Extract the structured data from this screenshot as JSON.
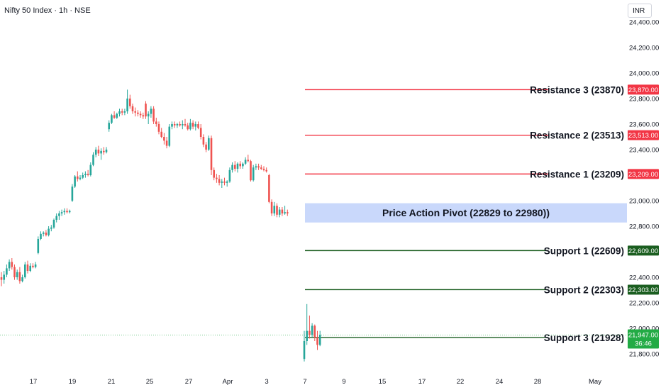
{
  "header": {
    "symbol_line": "Nifty 50 Index · 1h · NSE",
    "currency": "INR"
  },
  "colors": {
    "up": "#26a69a",
    "down": "#ef5350",
    "resistance": "#f23645",
    "support": "#1b5e20",
    "pivot_zone": "#c9d8fb",
    "current_price": "#22ab45"
  },
  "chart_data": {
    "type": "candlestick",
    "title": "Nifty 50 Index · 1h · NSE",
    "y_axis": {
      "ylim": [
        21700,
        24450
      ],
      "ticks": [
        {
          "value": 24400,
          "label": "24,400.00"
        },
        {
          "value": 24200,
          "label": "24,200.00"
        },
        {
          "value": 24000,
          "label": "24,000.00"
        },
        {
          "value": 23800,
          "label": "23,800.00"
        },
        {
          "value": 23600,
          "label": "23,600.00"
        },
        {
          "value": 23400,
          "label": "23,400.00"
        },
        {
          "value": 23000,
          "label": "23,000.00"
        },
        {
          "value": 22800,
          "label": "22,800.00"
        },
        {
          "value": 22400,
          "label": "22,400.00"
        },
        {
          "value": 22200,
          "label": "22,200.00"
        },
        {
          "value": 22000,
          "label": "22,000.00"
        },
        {
          "value": 21800,
          "label": "21,800.00"
        }
      ]
    },
    "x_axis": {
      "tick_labels": [
        "17",
        "19",
        "21",
        "25",
        "27",
        "Apr",
        "3",
        "7",
        "9",
        "15",
        "17",
        "22",
        "24",
        "28",
        "May"
      ]
    },
    "levels": [
      {
        "kind": "resistance",
        "label": "Resistance 3 (23870)",
        "value": 23870,
        "badge": "23,870.00"
      },
      {
        "kind": "resistance",
        "label": "Resistance 2 (23513)",
        "value": 23513,
        "badge": "23,513.00"
      },
      {
        "kind": "resistance",
        "label": "Resistance 1 (23209)",
        "value": 23209,
        "badge": "23,209.00"
      },
      {
        "kind": "support",
        "label": "Support 1 (22609)",
        "value": 22609,
        "badge": "22,609.00"
      },
      {
        "kind": "support",
        "label": "Support 2 (22303)",
        "value": 22303,
        "badge": "22,303.00"
      },
      {
        "kind": "support",
        "label": "Support 3 (21928)",
        "value": 21928,
        "badge": ""
      }
    ],
    "pivot_zone": {
      "label": "Price Action Pivot (22829 to 22980))",
      "low": 22829,
      "high": 22980
    },
    "current_price": {
      "value": 21947,
      "label": "21,947.00",
      "countdown": "36:46"
    },
    "candles": [
      {
        "date": "Mar 13",
        "o": 22400,
        "h": 22440,
        "l": 22330,
        "c": 22380
      },
      {
        "date": "Mar 13",
        "o": 22380,
        "h": 22450,
        "l": 22350,
        "c": 22420
      },
      {
        "date": "Mar 13",
        "o": 22420,
        "h": 22500,
        "l": 22400,
        "c": 22470
      },
      {
        "date": "Mar 13",
        "o": 22470,
        "h": 22540,
        "l": 22450,
        "c": 22520
      },
      {
        "date": "Mar 13",
        "o": 22520,
        "h": 22550,
        "l": 22460,
        "c": 22480
      },
      {
        "date": "Mar 13",
        "o": 22480,
        "h": 22500,
        "l": 22380,
        "c": 22400
      },
      {
        "date": "Mar 17",
        "o": 22400,
        "h": 22460,
        "l": 22380,
        "c": 22440
      },
      {
        "date": "Mar 17",
        "o": 22440,
        "h": 22480,
        "l": 22350,
        "c": 22370
      },
      {
        "date": "Mar 17",
        "o": 22370,
        "h": 22420,
        "l": 22360,
        "c": 22400
      },
      {
        "date": "Mar 17",
        "o": 22400,
        "h": 22520,
        "l": 22390,
        "c": 22500
      },
      {
        "date": "Mar 17",
        "o": 22500,
        "h": 22530,
        "l": 22430,
        "c": 22450
      },
      {
        "date": "Mar 17",
        "o": 22450,
        "h": 22510,
        "l": 22440,
        "c": 22490
      },
      {
        "date": "Mar 17",
        "o": 22490,
        "h": 22510,
        "l": 22470,
        "c": 22480
      },
      {
        "date": "Mar 18",
        "o": 22480,
        "h": 22520,
        "l": 22470,
        "c": 22500
      },
      {
        "date": "Mar 18",
        "o": 22590,
        "h": 22720,
        "l": 22580,
        "c": 22700
      },
      {
        "date": "Mar 18",
        "o": 22700,
        "h": 22760,
        "l": 22690,
        "c": 22740
      },
      {
        "date": "Mar 18",
        "o": 22740,
        "h": 22760,
        "l": 22720,
        "c": 22750
      },
      {
        "date": "Mar 18",
        "o": 22750,
        "h": 22770,
        "l": 22720,
        "c": 22730
      },
      {
        "date": "Mar 18",
        "o": 22730,
        "h": 22800,
        "l": 22720,
        "c": 22780
      },
      {
        "date": "Mar 18",
        "o": 22780,
        "h": 22810,
        "l": 22760,
        "c": 22790
      },
      {
        "date": "Mar 19",
        "o": 22790,
        "h": 22860,
        "l": 22780,
        "c": 22850
      },
      {
        "date": "Mar 19",
        "o": 22850,
        "h": 22900,
        "l": 22830,
        "c": 22880
      },
      {
        "date": "Mar 19",
        "o": 22880,
        "h": 22920,
        "l": 22850,
        "c": 22900
      },
      {
        "date": "Mar 19",
        "o": 22900,
        "h": 22930,
        "l": 22880,
        "c": 22910
      },
      {
        "date": "Mar 19",
        "o": 22910,
        "h": 22940,
        "l": 22890,
        "c": 22920
      },
      {
        "date": "Mar 19",
        "o": 22920,
        "h": 22940,
        "l": 22900,
        "c": 22910
      },
      {
        "date": "Mar 19",
        "o": 22910,
        "h": 22930,
        "l": 22900,
        "c": 22920
      },
      {
        "date": "Mar 20",
        "o": 23000,
        "h": 23130,
        "l": 22990,
        "c": 23110
      },
      {
        "date": "Mar 20",
        "o": 23110,
        "h": 23200,
        "l": 23100,
        "c": 23190
      },
      {
        "date": "Mar 20",
        "o": 23190,
        "h": 23230,
        "l": 23150,
        "c": 23170
      },
      {
        "date": "Mar 20",
        "o": 23170,
        "h": 23200,
        "l": 23160,
        "c": 23180
      },
      {
        "date": "Mar 20",
        "o": 23180,
        "h": 23220,
        "l": 23170,
        "c": 23200
      },
      {
        "date": "Mar 20",
        "o": 23200,
        "h": 23230,
        "l": 23180,
        "c": 23210
      },
      {
        "date": "Mar 20",
        "o": 23210,
        "h": 23240,
        "l": 23190,
        "c": 23200
      },
      {
        "date": "Mar 21",
        "o": 23200,
        "h": 23300,
        "l": 23190,
        "c": 23280
      },
      {
        "date": "Mar 21",
        "o": 23280,
        "h": 23380,
        "l": 23270,
        "c": 23360
      },
      {
        "date": "Mar 21",
        "o": 23360,
        "h": 23420,
        "l": 23340,
        "c": 23400
      },
      {
        "date": "Mar 21",
        "o": 23400,
        "h": 23430,
        "l": 23350,
        "c": 23370
      },
      {
        "date": "Mar 21",
        "o": 23370,
        "h": 23410,
        "l": 23320,
        "c": 23390
      },
      {
        "date": "Mar 21",
        "o": 23390,
        "h": 23420,
        "l": 23360,
        "c": 23380
      },
      {
        "date": "Mar 21",
        "o": 23380,
        "h": 23420,
        "l": 23370,
        "c": 23400
      },
      {
        "date": "Mar 24",
        "o": 23560,
        "h": 23630,
        "l": 23540,
        "c": 23610
      },
      {
        "date": "Mar 24",
        "o": 23610,
        "h": 23680,
        "l": 23600,
        "c": 23670
      },
      {
        "date": "Mar 24",
        "o": 23670,
        "h": 23700,
        "l": 23640,
        "c": 23650
      },
      {
        "date": "Mar 24",
        "o": 23650,
        "h": 23690,
        "l": 23640,
        "c": 23680
      },
      {
        "date": "Mar 24",
        "o": 23680,
        "h": 23720,
        "l": 23660,
        "c": 23700
      },
      {
        "date": "Mar 24",
        "o": 23700,
        "h": 23720,
        "l": 23670,
        "c": 23690
      },
      {
        "date": "Mar 24",
        "o": 23690,
        "h": 23720,
        "l": 23670,
        "c": 23700
      },
      {
        "date": "Mar 25",
        "o": 23700,
        "h": 23870,
        "l": 23680,
        "c": 23800
      },
      {
        "date": "Mar 25",
        "o": 23800,
        "h": 23830,
        "l": 23720,
        "c": 23740
      },
      {
        "date": "Mar 25",
        "o": 23740,
        "h": 23760,
        "l": 23680,
        "c": 23700
      },
      {
        "date": "Mar 25",
        "o": 23700,
        "h": 23730,
        "l": 23660,
        "c": 23690
      },
      {
        "date": "Mar 25",
        "o": 23690,
        "h": 23710,
        "l": 23660,
        "c": 23680
      },
      {
        "date": "Mar 25",
        "o": 23680,
        "h": 23700,
        "l": 23650,
        "c": 23670
      },
      {
        "date": "Mar 25",
        "o": 23670,
        "h": 23690,
        "l": 23640,
        "c": 23660
      },
      {
        "date": "Mar 26",
        "o": 23760,
        "h": 23780,
        "l": 23640,
        "c": 23660
      },
      {
        "date": "Mar 26",
        "o": 23660,
        "h": 23700,
        "l": 23600,
        "c": 23680
      },
      {
        "date": "Mar 26",
        "o": 23680,
        "h": 23740,
        "l": 23650,
        "c": 23720
      },
      {
        "date": "Mar 26",
        "o": 23720,
        "h": 23740,
        "l": 23600,
        "c": 23620
      },
      {
        "date": "Mar 26",
        "o": 23620,
        "h": 23650,
        "l": 23580,
        "c": 23600
      },
      {
        "date": "Mar 26",
        "o": 23600,
        "h": 23620,
        "l": 23520,
        "c": 23540
      },
      {
        "date": "Mar 26",
        "o": 23540,
        "h": 23570,
        "l": 23490,
        "c": 23500
      },
      {
        "date": "Mar 27",
        "o": 23500,
        "h": 23530,
        "l": 23440,
        "c": 23470
      },
      {
        "date": "Mar 27",
        "o": 23470,
        "h": 23500,
        "l": 23410,
        "c": 23430
      },
      {
        "date": "Mar 27",
        "o": 23430,
        "h": 23600,
        "l": 23420,
        "c": 23580
      },
      {
        "date": "Mar 27",
        "o": 23580,
        "h": 23620,
        "l": 23560,
        "c": 23600
      },
      {
        "date": "Mar 27",
        "o": 23600,
        "h": 23620,
        "l": 23570,
        "c": 23590
      },
      {
        "date": "Mar 27",
        "o": 23590,
        "h": 23610,
        "l": 23570,
        "c": 23600
      },
      {
        "date": "Mar 27",
        "o": 23600,
        "h": 23620,
        "l": 23580,
        "c": 23590
      },
      {
        "date": "Mar 28",
        "o": 23590,
        "h": 23630,
        "l": 23560,
        "c": 23600
      },
      {
        "date": "Mar 28",
        "o": 23600,
        "h": 23640,
        "l": 23580,
        "c": 23590
      },
      {
        "date": "Mar 28",
        "o": 23590,
        "h": 23610,
        "l": 23550,
        "c": 23560
      },
      {
        "date": "Mar 28",
        "o": 23560,
        "h": 23640,
        "l": 23550,
        "c": 23610
      },
      {
        "date": "Mar 28",
        "o": 23610,
        "h": 23630,
        "l": 23560,
        "c": 23580
      },
      {
        "date": "Mar 28",
        "o": 23580,
        "h": 23620,
        "l": 23550,
        "c": 23600
      },
      {
        "date": "Mar 28",
        "o": 23600,
        "h": 23620,
        "l": 23560,
        "c": 23570
      },
      {
        "date": "Apr 1",
        "o": 23570,
        "h": 23600,
        "l": 23480,
        "c": 23500
      },
      {
        "date": "Apr 1",
        "o": 23500,
        "h": 23520,
        "l": 23420,
        "c": 23440
      },
      {
        "date": "Apr 1",
        "o": 23440,
        "h": 23460,
        "l": 23380,
        "c": 23400
      },
      {
        "date": "Apr 1",
        "o": 23400,
        "h": 23510,
        "l": 23390,
        "c": 23490
      },
      {
        "date": "Apr 1",
        "o": 23490,
        "h": 23510,
        "l": 23200,
        "c": 23240
      },
      {
        "date": "Apr 1",
        "o": 23240,
        "h": 23260,
        "l": 23160,
        "c": 23180
      },
      {
        "date": "Apr 1",
        "o": 23180,
        "h": 23210,
        "l": 23140,
        "c": 23170
      },
      {
        "date": "Apr 2",
        "o": 23170,
        "h": 23200,
        "l": 23120,
        "c": 23140
      },
      {
        "date": "Apr 2",
        "o": 23140,
        "h": 23170,
        "l": 23100,
        "c": 23150
      },
      {
        "date": "Apr 2",
        "o": 23150,
        "h": 23180,
        "l": 23120,
        "c": 23140
      },
      {
        "date": "Apr 2",
        "o": 23140,
        "h": 23160,
        "l": 23110,
        "c": 23150
      },
      {
        "date": "Apr 2",
        "o": 23150,
        "h": 23260,
        "l": 23140,
        "c": 23240
      },
      {
        "date": "Apr 2",
        "o": 23240,
        "h": 23300,
        "l": 23220,
        "c": 23280
      },
      {
        "date": "Apr 2",
        "o": 23280,
        "h": 23310,
        "l": 23230,
        "c": 23250
      },
      {
        "date": "Apr 3",
        "o": 23250,
        "h": 23300,
        "l": 23220,
        "c": 23290
      },
      {
        "date": "Apr 3",
        "o": 23290,
        "h": 23310,
        "l": 23250,
        "c": 23270
      },
      {
        "date": "Apr 3",
        "o": 23270,
        "h": 23300,
        "l": 23250,
        "c": 23290
      },
      {
        "date": "Apr 3",
        "o": 23290,
        "h": 23340,
        "l": 23280,
        "c": 23320
      },
      {
        "date": "Apr 3",
        "o": 23320,
        "h": 23360,
        "l": 23300,
        "c": 23310
      },
      {
        "date": "Apr 3",
        "o": 23310,
        "h": 23320,
        "l": 23150,
        "c": 23160
      },
      {
        "date": "Apr 3",
        "o": 23160,
        "h": 23280,
        "l": 23150,
        "c": 23260
      },
      {
        "date": "Apr 4",
        "o": 23260,
        "h": 23290,
        "l": 23240,
        "c": 23270
      },
      {
        "date": "Apr 4",
        "o": 23270,
        "h": 23290,
        "l": 23240,
        "c": 23260
      },
      {
        "date": "Apr 4",
        "o": 23260,
        "h": 23280,
        "l": 23240,
        "c": 23250
      },
      {
        "date": "Apr 4",
        "o": 23250,
        "h": 23270,
        "l": 23230,
        "c": 23240
      },
      {
        "date": "Apr 4",
        "o": 23240,
        "h": 23260,
        "l": 23220,
        "c": 23230
      },
      {
        "date": "Apr 4",
        "o": 23200,
        "h": 23210,
        "l": 22980,
        "c": 22990
      },
      {
        "date": "Apr 4",
        "o": 22990,
        "h": 23010,
        "l": 22880,
        "c": 22900
      },
      {
        "date": "Apr 4",
        "o": 22900,
        "h": 22990,
        "l": 22880,
        "c": 22960
      },
      {
        "date": "Apr 4",
        "o": 22960,
        "h": 22980,
        "l": 22870,
        "c": 22890
      },
      {
        "date": "Apr 4",
        "o": 22890,
        "h": 22950,
        "l": 22870,
        "c": 22930
      },
      {
        "date": "Apr 4",
        "o": 22930,
        "h": 22950,
        "l": 22880,
        "c": 22900
      },
      {
        "date": "Apr 4",
        "o": 22900,
        "h": 22960,
        "l": 22890,
        "c": 22910
      },
      {
        "date": "Apr 4",
        "o": 22910,
        "h": 22930,
        "l": 22880,
        "c": 22900
      },
      {
        "date": "Apr 7",
        "o": 21760,
        "h": 21980,
        "l": 21740,
        "c": 21900
      },
      {
        "date": "Apr 7",
        "o": 21900,
        "h": 22190,
        "l": 21870,
        "c": 21980
      },
      {
        "date": "Apr 7",
        "o": 21980,
        "h": 22100,
        "l": 21920,
        "c": 21950
      },
      {
        "date": "Apr 7",
        "o": 21950,
        "h": 22040,
        "l": 21930,
        "c": 22020
      },
      {
        "date": "Apr 7",
        "o": 22020,
        "h": 22030,
        "l": 21900,
        "c": 21930
      },
      {
        "date": "Apr 7",
        "o": 21930,
        "h": 21980,
        "l": 21830,
        "c": 21870
      },
      {
        "date": "Apr 7",
        "o": 21870,
        "h": 21980,
        "l": 21860,
        "c": 21950
      }
    ]
  }
}
